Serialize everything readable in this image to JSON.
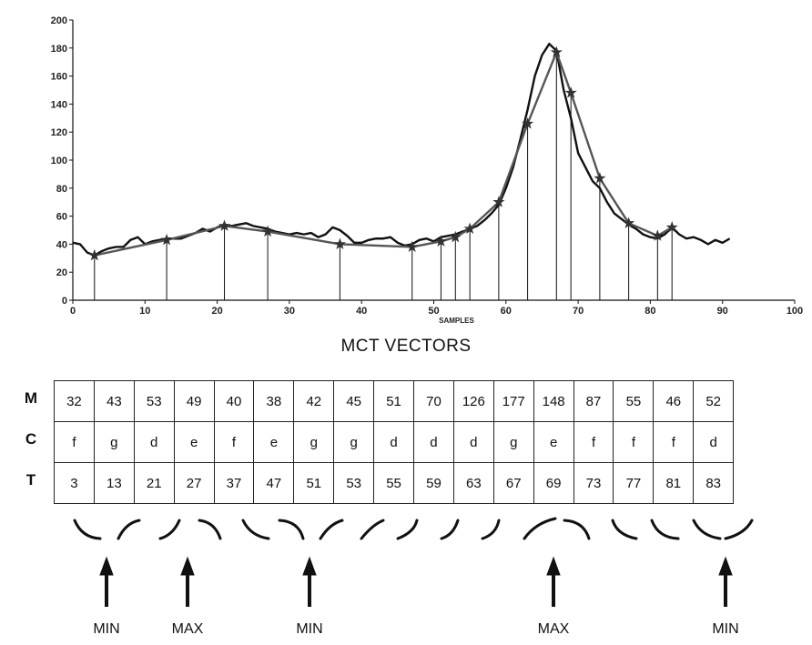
{
  "chart_data": {
    "type": "line",
    "xlabel": "SAMPLES",
    "ylabel": "",
    "xlim": [
      0,
      100
    ],
    "ylim": [
      0,
      200
    ],
    "x_ticks": [
      "0",
      "10",
      "20",
      "30",
      "40",
      "50",
      "60",
      "70",
      "80",
      "90",
      "100"
    ],
    "y_ticks": [
      "0",
      "20",
      "40",
      "60",
      "80",
      "100",
      "120",
      "140",
      "160",
      "180",
      "200"
    ],
    "series": [
      {
        "x": [
          0,
          1,
          2,
          3,
          4,
          5,
          6,
          7,
          8,
          9,
          10,
          11,
          12,
          13,
          14,
          15,
          16,
          17,
          18,
          19,
          20,
          21,
          22,
          23,
          24,
          25,
          26,
          27,
          28,
          29,
          30,
          31,
          32,
          33,
          34,
          35,
          36,
          37,
          38,
          39,
          40,
          41,
          42,
          43,
          44,
          45,
          46,
          47,
          48,
          49,
          50,
          51,
          52,
          53,
          54,
          55,
          56,
          57,
          58,
          59,
          60,
          61,
          62,
          63,
          64,
          65,
          66,
          67,
          68,
          69,
          70,
          71,
          72,
          73,
          74,
          75,
          76,
          77,
          78,
          79,
          80,
          81,
          82,
          83,
          84,
          85,
          86,
          87,
          88,
          89,
          90,
          91
        ],
        "y": [
          41,
          40,
          34,
          32,
          35,
          37,
          38,
          38,
          43,
          45,
          40,
          42,
          43,
          44,
          44,
          44,
          46,
          48,
          51,
          49,
          52,
          54,
          53,
          54,
          55,
          53,
          52,
          51,
          49,
          48,
          47,
          48,
          47,
          48,
          45,
          47,
          52,
          50,
          46,
          41,
          41,
          43,
          44,
          44,
          45,
          41,
          39,
          40,
          43,
          44,
          42,
          45,
          46,
          47,
          49,
          51,
          53,
          57,
          62,
          68,
          80,
          95,
          115,
          136,
          160,
          175,
          183,
          178,
          150,
          130,
          105,
          95,
          85,
          80,
          70,
          62,
          58,
          54,
          51,
          47,
          45,
          44,
          47,
          52,
          47,
          44,
          45,
          43,
          40,
          43,
          41,
          44
        ]
      },
      {
        "x": [
          3,
          13,
          21,
          27,
          37,
          47,
          51,
          53,
          55,
          59,
          63,
          67,
          69,
          73,
          77,
          81,
          83
        ],
        "y": [
          32,
          43,
          53,
          49,
          40,
          38,
          42,
          45,
          51,
          70,
          126,
          177,
          148,
          87,
          55,
          46,
          52
        ]
      }
    ]
  },
  "section_title": "MCT VECTORS",
  "row_labels": [
    "M",
    "C",
    "T"
  ],
  "table": {
    "M": [
      "32",
      "43",
      "53",
      "49",
      "40",
      "38",
      "42",
      "45",
      "51",
      "70",
      "126",
      "177",
      "148",
      "87",
      "55",
      "46",
      "52"
    ],
    "C": [
      "f",
      "g",
      "d",
      "e",
      "f",
      "e",
      "g",
      "g",
      "d",
      "d",
      "d",
      "g",
      "e",
      "f",
      "f",
      "f",
      "d"
    ],
    "T": [
      "3",
      "13",
      "21",
      "27",
      "37",
      "47",
      "51",
      "53",
      "55",
      "59",
      "63",
      "67",
      "69",
      "73",
      "77",
      "81",
      "83"
    ]
  },
  "extrema_labels": [
    "MIN",
    "MAX",
    "MIN",
    "MAX",
    "MIN"
  ]
}
